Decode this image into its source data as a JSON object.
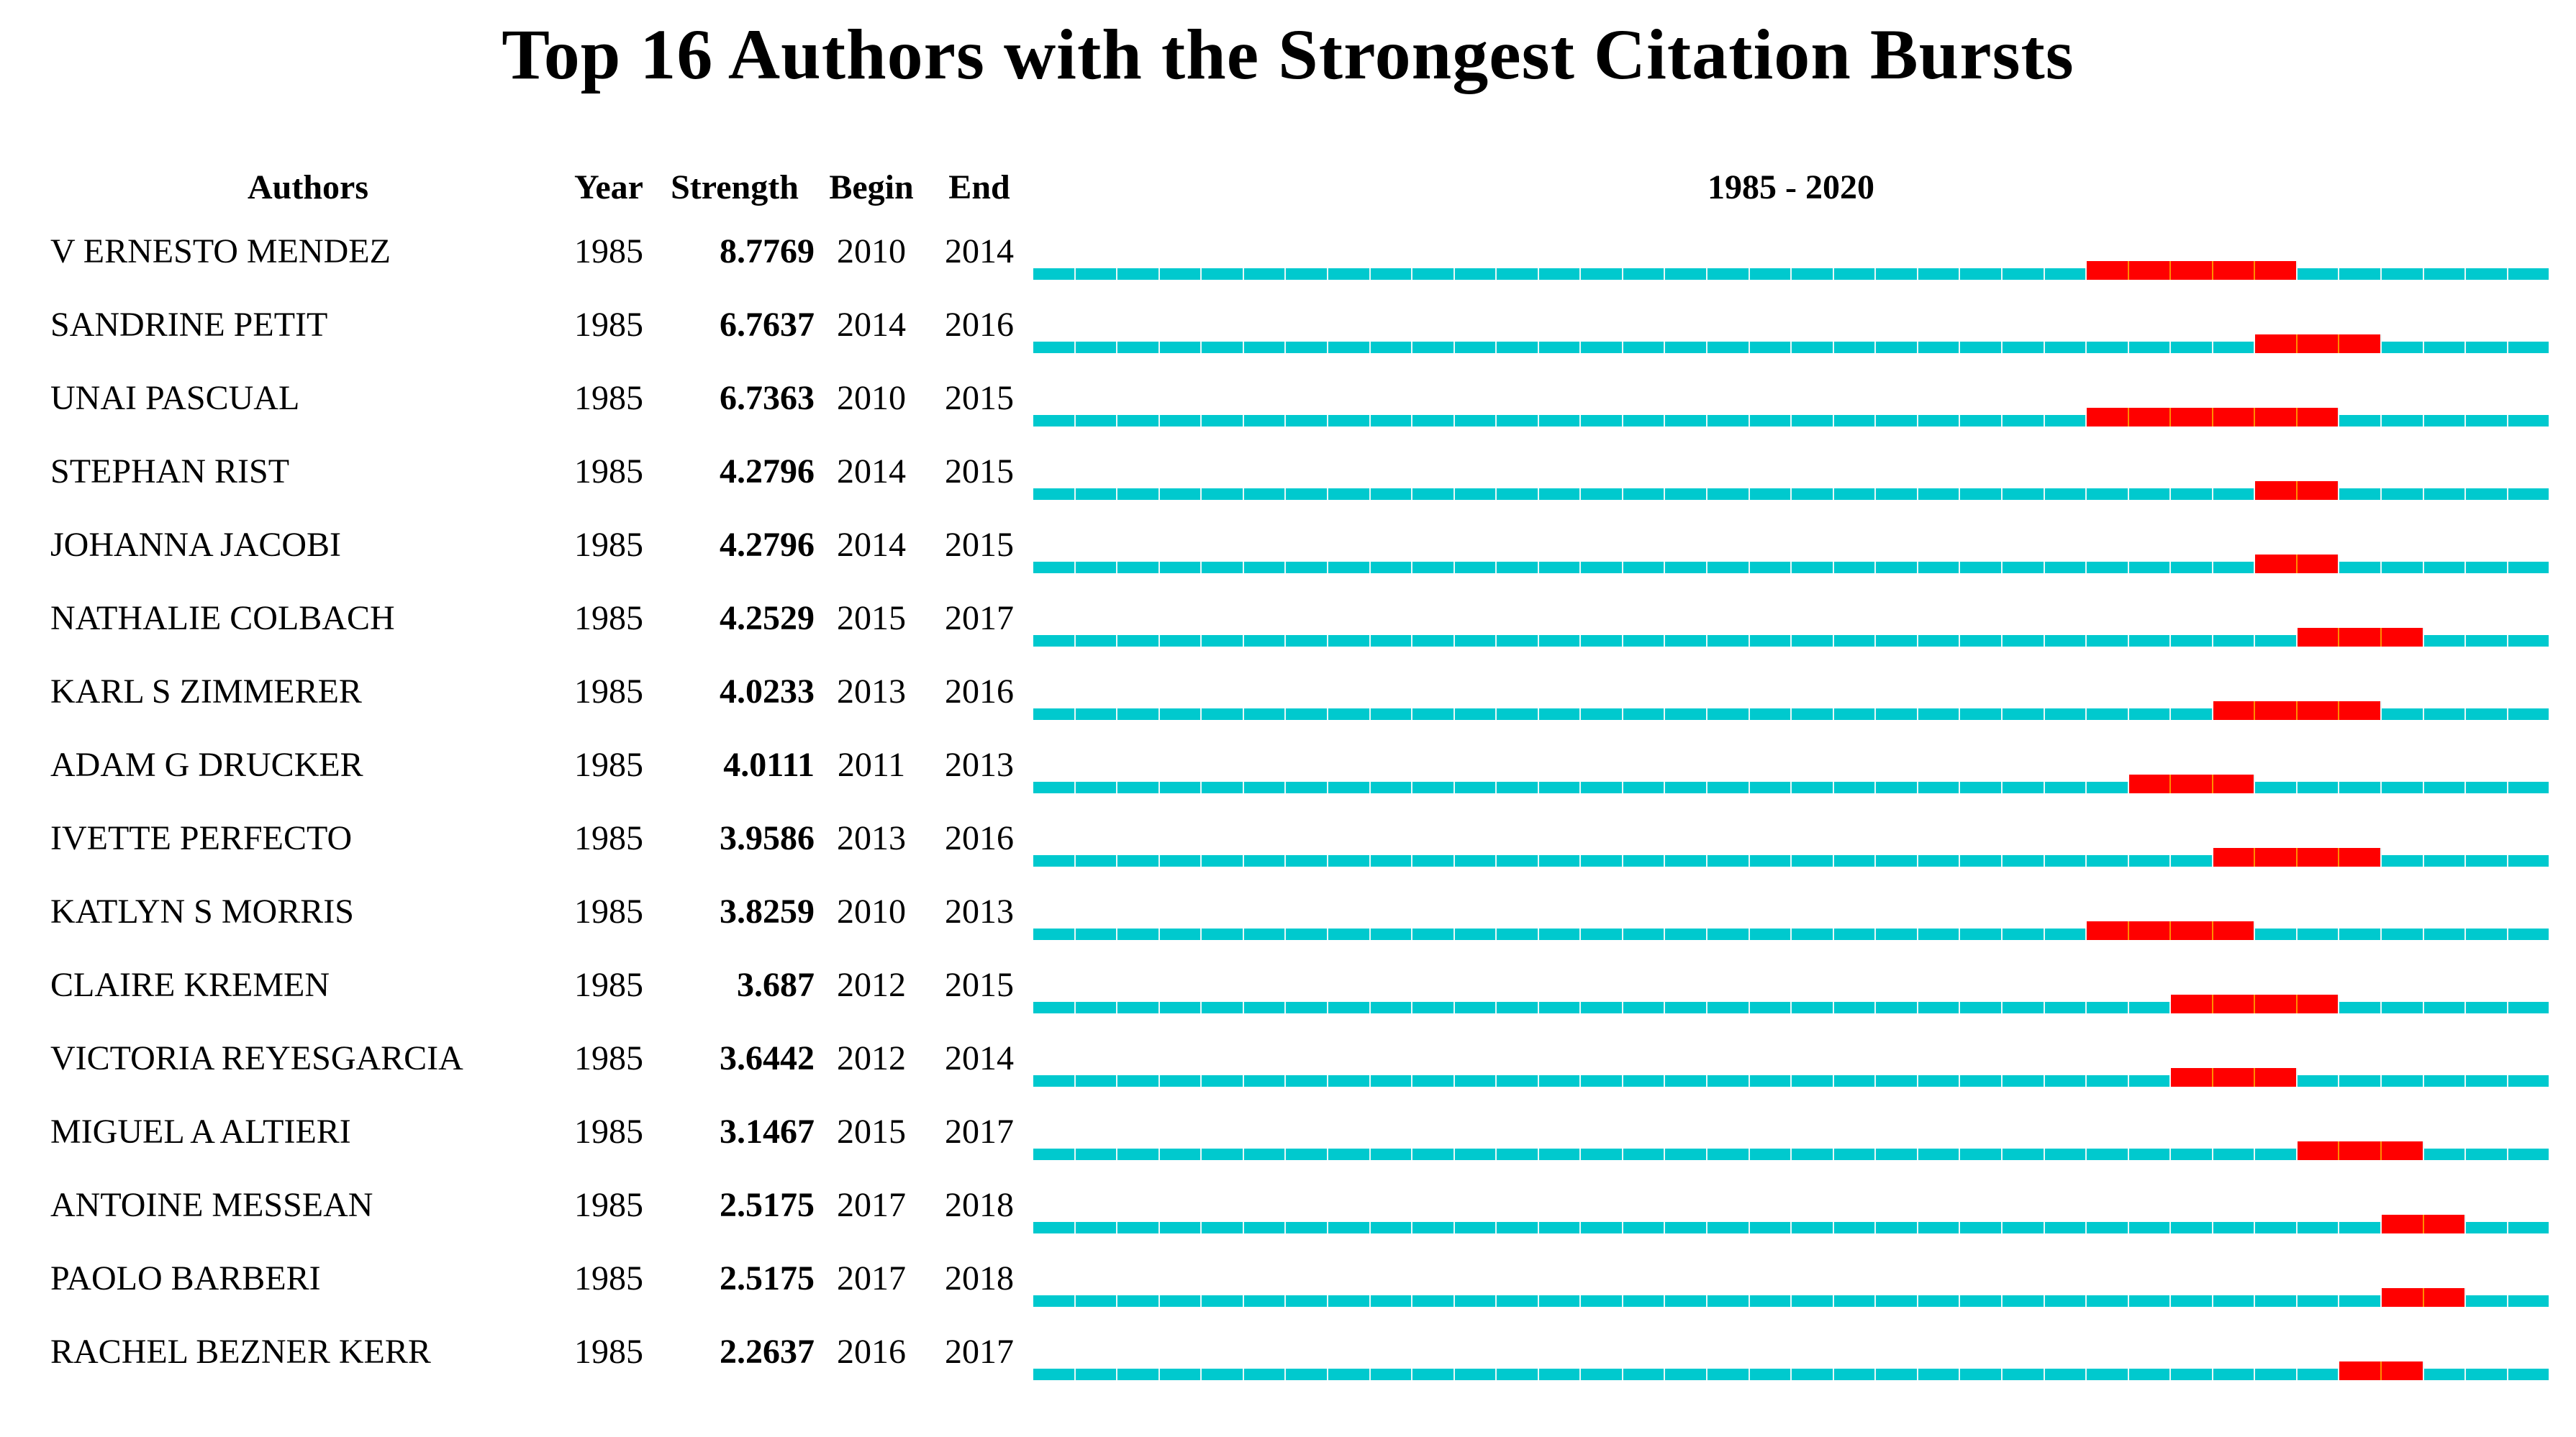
{
  "title": "Top 16 Authors with the Strongest Citation Bursts",
  "columns": {
    "authors": "Authors",
    "year": "Year",
    "strength": "Strength",
    "begin": "Begin",
    "end": "End",
    "timeline": "1985 - 2020"
  },
  "chart_data": {
    "type": "table",
    "title": "Top 16 Authors with the Strongest Citation Bursts",
    "timeline": {
      "start_year": 1985,
      "end_year": 2020,
      "header": "1985 - 2020"
    },
    "colors": {
      "track": "#00C9CE",
      "track_separator": "#EAF7F7",
      "burst": "#FF0000",
      "burst_separator": "#FF8C00",
      "text": "#000000",
      "background": "#FFFFFF"
    },
    "rows": [
      {
        "author": "V ERNESTO MENDEZ",
        "year": 1985,
        "strength": "8.7769",
        "begin": 2010,
        "end": 2014
      },
      {
        "author": "SANDRINE PETIT",
        "year": 1985,
        "strength": "6.7637",
        "begin": 2014,
        "end": 2016
      },
      {
        "author": "UNAI PASCUAL",
        "year": 1985,
        "strength": "6.7363",
        "begin": 2010,
        "end": 2015
      },
      {
        "author": "STEPHAN RIST",
        "year": 1985,
        "strength": "4.2796",
        "begin": 2014,
        "end": 2015
      },
      {
        "author": "JOHANNA JACOBI",
        "year": 1985,
        "strength": "4.2796",
        "begin": 2014,
        "end": 2015
      },
      {
        "author": "NATHALIE COLBACH",
        "year": 1985,
        "strength": "4.2529",
        "begin": 2015,
        "end": 2017
      },
      {
        "author": "KARL S ZIMMERER",
        "year": 1985,
        "strength": "4.0233",
        "begin": 2013,
        "end": 2016
      },
      {
        "author": "ADAM G DRUCKER",
        "year": 1985,
        "strength": "4.0111",
        "begin": 2011,
        "end": 2013
      },
      {
        "author": "IVETTE PERFECTO",
        "year": 1985,
        "strength": "3.9586",
        "begin": 2013,
        "end": 2016
      },
      {
        "author": "KATLYN S MORRIS",
        "year": 1985,
        "strength": "3.8259",
        "begin": 2010,
        "end": 2013
      },
      {
        "author": "CLAIRE KREMEN",
        "year": 1985,
        "strength": "3.687",
        "begin": 2012,
        "end": 2015
      },
      {
        "author": "VICTORIA REYESGARCIA",
        "year": 1985,
        "strength": "3.6442",
        "begin": 2012,
        "end": 2014
      },
      {
        "author": "MIGUEL A ALTIERI",
        "year": 1985,
        "strength": "3.1467",
        "begin": 2015,
        "end": 2017
      },
      {
        "author": "ANTOINE MESSEAN",
        "year": 1985,
        "strength": "2.5175",
        "begin": 2017,
        "end": 2018
      },
      {
        "author": "PAOLO BARBERI",
        "year": 1985,
        "strength": "2.5175",
        "begin": 2017,
        "end": 2018
      },
      {
        "author": "RACHEL BEZNER KERR",
        "year": 1985,
        "strength": "2.2637",
        "begin": 2016,
        "end": 2017
      }
    ]
  }
}
